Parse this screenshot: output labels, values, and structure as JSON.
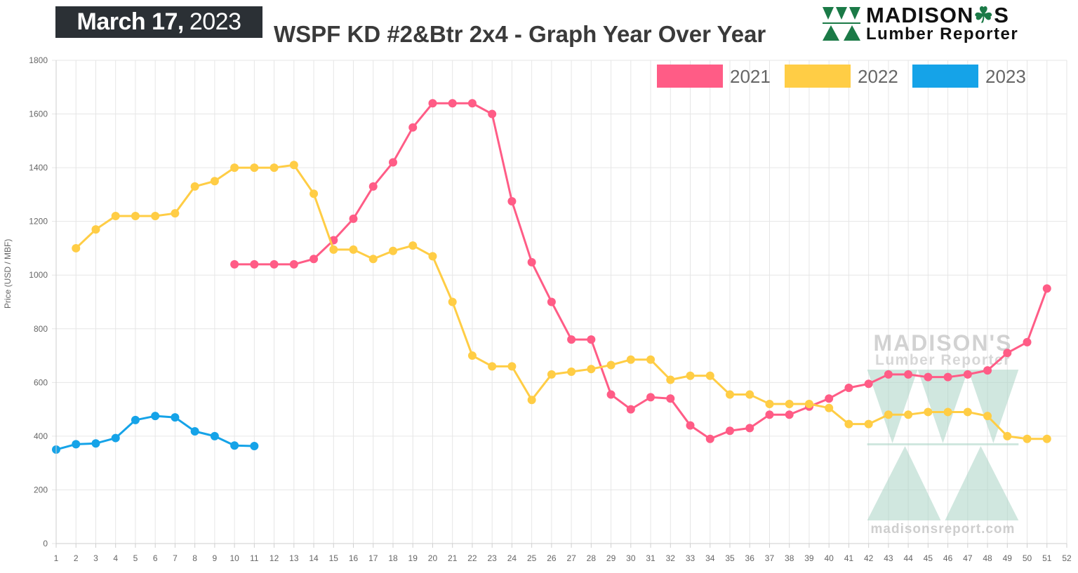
{
  "header": {
    "date_bold": "March 17,",
    "date_year": "2023",
    "title": "WSPF KD #2&Btr 2x4 - Graph Year Over Year",
    "logo_name": "MADISON",
    "logo_name_suffix": "S",
    "logo_sub": "Lumber Reporter",
    "watermark_name": "MADISON'S",
    "watermark_sub": "Lumber Reporter",
    "watermark_url": "madisonsreport.com"
  },
  "colors": {
    "s2021": "#ff5c86",
    "s2022": "#ffcd45",
    "s2023": "#15a3e8",
    "grid": "#e6e6e6",
    "watermark": "#a9d3c4",
    "logo_green": "#1b7a47"
  },
  "chart_data": {
    "type": "line",
    "title": "WSPF KD #2&Btr 2x4 - Graph Year Over Year",
    "xlabel": "",
    "ylabel": "Price (USD / MBF)",
    "x": [
      1,
      2,
      3,
      4,
      5,
      6,
      7,
      8,
      9,
      10,
      11,
      12,
      13,
      14,
      15,
      16,
      17,
      18,
      19,
      20,
      21,
      22,
      23,
      24,
      25,
      26,
      27,
      28,
      29,
      30,
      31,
      32,
      33,
      34,
      35,
      36,
      37,
      38,
      39,
      40,
      41,
      42,
      43,
      44,
      45,
      46,
      47,
      48,
      49,
      50,
      51,
      52
    ],
    "ylim": [
      0,
      1800
    ],
    "yticks": [
      0,
      200,
      400,
      600,
      800,
      1000,
      1200,
      1400,
      1600,
      1800
    ],
    "grid": true,
    "legend": "top-right",
    "series": [
      {
        "name": "2021",
        "color": "#ff5c86",
        "points": [
          [
            10,
            1040
          ],
          [
            11,
            1040
          ],
          [
            12,
            1040
          ],
          [
            13,
            1040
          ],
          [
            14,
            1060
          ],
          [
            15,
            1130
          ],
          [
            16,
            1210
          ],
          [
            17,
            1330
          ],
          [
            18,
            1420
          ],
          [
            19,
            1550
          ],
          [
            20,
            1640
          ],
          [
            21,
            1640
          ],
          [
            22,
            1640
          ],
          [
            23,
            1600
          ],
          [
            24,
            1275
          ],
          [
            25,
            1048
          ],
          [
            26,
            900
          ],
          [
            27,
            760
          ],
          [
            28,
            760
          ],
          [
            29,
            555
          ],
          [
            30,
            500
          ],
          [
            31,
            545
          ],
          [
            32,
            540
          ],
          [
            33,
            440
          ],
          [
            34,
            390
          ],
          [
            35,
            420
          ],
          [
            36,
            430
          ],
          [
            37,
            480
          ],
          [
            38,
            480
          ],
          [
            39,
            510
          ],
          [
            40,
            540
          ],
          [
            41,
            580
          ],
          [
            42,
            595
          ],
          [
            43,
            630
          ],
          [
            44,
            630
          ],
          [
            45,
            620
          ],
          [
            46,
            620
          ],
          [
            47,
            630
          ],
          [
            48,
            645
          ],
          [
            49,
            710
          ],
          [
            50,
            750
          ],
          [
            51,
            950
          ]
        ]
      },
      {
        "name": "2022",
        "color": "#ffcd45",
        "points": [
          [
            2,
            1100
          ],
          [
            3,
            1170
          ],
          [
            4,
            1220
          ],
          [
            5,
            1220
          ],
          [
            6,
            1220
          ],
          [
            7,
            1230
          ],
          [
            8,
            1330
          ],
          [
            9,
            1350
          ],
          [
            10,
            1400
          ],
          [
            11,
            1400
          ],
          [
            12,
            1400
          ],
          [
            13,
            1410
          ],
          [
            14,
            1303
          ],
          [
            15,
            1095
          ],
          [
            16,
            1095
          ],
          [
            17,
            1060
          ],
          [
            18,
            1090
          ],
          [
            19,
            1110
          ],
          [
            20,
            1070
          ],
          [
            21,
            900
          ],
          [
            22,
            700
          ],
          [
            23,
            660
          ],
          [
            24,
            660
          ],
          [
            25,
            535
          ],
          [
            26,
            630
          ],
          [
            27,
            640
          ],
          [
            28,
            650
          ],
          [
            29,
            665
          ],
          [
            30,
            685
          ],
          [
            31,
            685
          ],
          [
            32,
            610
          ],
          [
            33,
            625
          ],
          [
            34,
            625
          ],
          [
            35,
            555
          ],
          [
            36,
            555
          ],
          [
            37,
            520
          ],
          [
            38,
            520
          ],
          [
            39,
            520
          ],
          [
            40,
            505
          ],
          [
            41,
            445
          ],
          [
            42,
            445
          ],
          [
            43,
            480
          ],
          [
            44,
            480
          ],
          [
            45,
            490
          ],
          [
            46,
            490
          ],
          [
            47,
            490
          ],
          [
            48,
            475
          ],
          [
            49,
            400
          ],
          [
            50,
            390
          ],
          [
            51,
            390
          ]
        ]
      },
      {
        "name": "2023",
        "color": "#15a3e8",
        "points": [
          [
            1,
            350
          ],
          [
            2,
            370
          ],
          [
            3,
            373
          ],
          [
            4,
            393
          ],
          [
            5,
            460
          ],
          [
            6,
            475
          ],
          [
            7,
            470
          ],
          [
            8,
            418
          ],
          [
            9,
            400
          ],
          [
            10,
            365
          ],
          [
            11,
            363
          ]
        ]
      }
    ]
  }
}
